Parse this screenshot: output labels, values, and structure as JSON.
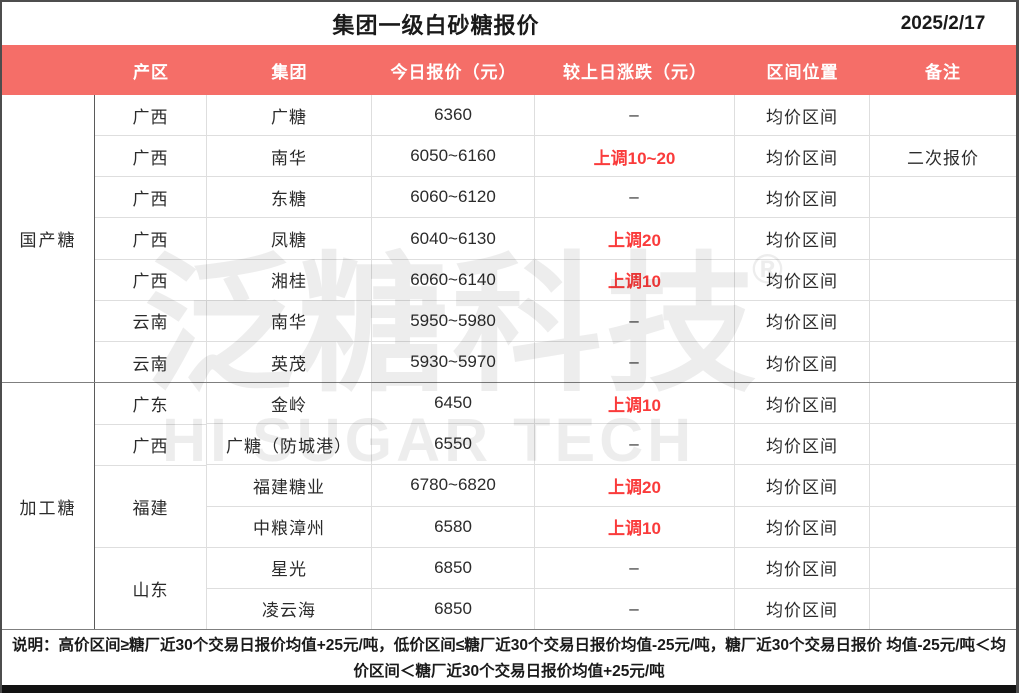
{
  "title": "集团一级白砂糖报价",
  "date": "2025/2/17",
  "columns": [
    "产区",
    "集团",
    "今日报价（元）",
    "较上日涨跌（元）",
    "区间位置",
    "备注"
  ],
  "groups": [
    {
      "label": "国产糖",
      "region_cells": [
        {
          "label": "广西",
          "span": 1
        },
        {
          "label": "广西",
          "span": 1
        },
        {
          "label": "广西",
          "span": 1
        },
        {
          "label": "广西",
          "span": 1
        },
        {
          "label": "广西",
          "span": 1
        },
        {
          "label": "云南",
          "span": 1
        },
        {
          "label": "云南",
          "span": 1
        }
      ],
      "rows": [
        {
          "group": "广糖",
          "price": "6360",
          "change": "–",
          "change_up": false,
          "position": "均价区间",
          "note": ""
        },
        {
          "group": "南华",
          "price": "6050~6160",
          "change": "上调10~20",
          "change_up": true,
          "position": "均价区间",
          "note": "二次报价"
        },
        {
          "group": "东糖",
          "price": "6060~6120",
          "change": "–",
          "change_up": false,
          "position": "均价区间",
          "note": ""
        },
        {
          "group": "凤糖",
          "price": "6040~6130",
          "change": "上调20",
          "change_up": true,
          "position": "均价区间",
          "note": ""
        },
        {
          "group": "湘桂",
          "price": "6060~6140",
          "change": "上调10",
          "change_up": true,
          "position": "均价区间",
          "note": ""
        },
        {
          "group": "南华",
          "price": "5950~5980",
          "change": "–",
          "change_up": false,
          "position": "均价区间",
          "note": ""
        },
        {
          "group": "英茂",
          "price": "5930~5970",
          "change": "–",
          "change_up": false,
          "position": "均价区间",
          "note": ""
        }
      ]
    },
    {
      "label": "加工糖",
      "region_cells": [
        {
          "label": "广东",
          "span": 1
        },
        {
          "label": "广西",
          "span": 1
        },
        {
          "label": "福建",
          "span": 2
        },
        {
          "label": "山东",
          "span": 2
        }
      ],
      "rows": [
        {
          "group": "金岭",
          "price": "6450",
          "change": "上调10",
          "change_up": true,
          "position": "均价区间",
          "note": ""
        },
        {
          "group": "广糖（防城港）",
          "price": "6550",
          "change": "–",
          "change_up": false,
          "position": "均价区间",
          "note": ""
        },
        {
          "group": "福建糖业",
          "price": "6780~6820",
          "change": "上调20",
          "change_up": true,
          "position": "均价区间",
          "note": ""
        },
        {
          "group": "中粮漳州",
          "price": "6580",
          "change": "上调10",
          "change_up": true,
          "position": "均价区间",
          "note": ""
        },
        {
          "group": "星光",
          "price": "6850",
          "change": "–",
          "change_up": false,
          "position": "均价区间",
          "note": ""
        },
        {
          "group": "凌云海",
          "price": "6850",
          "change": "–",
          "change_up": false,
          "position": "均价区间",
          "note": ""
        }
      ]
    }
  ],
  "footnote_line1": "说明：高价区间≥糖厂近30个交易日报价均值+25元/吨，低价区间≤糖厂近30个交易日报价均值-25元/吨，糖厂近30个交易日报价",
  "footnote_line2": "均值-25元/吨＜均价区间＜糖厂近30个交易日报价均值+25元/吨",
  "watermark": {
    "cn": "泛糖科技",
    "reg": "®",
    "en": "HI SUGAR TECH"
  },
  "colors": {
    "header_bg": "#f56e68",
    "up_red": "#fa3b3b",
    "header_text": "#ffffff"
  }
}
